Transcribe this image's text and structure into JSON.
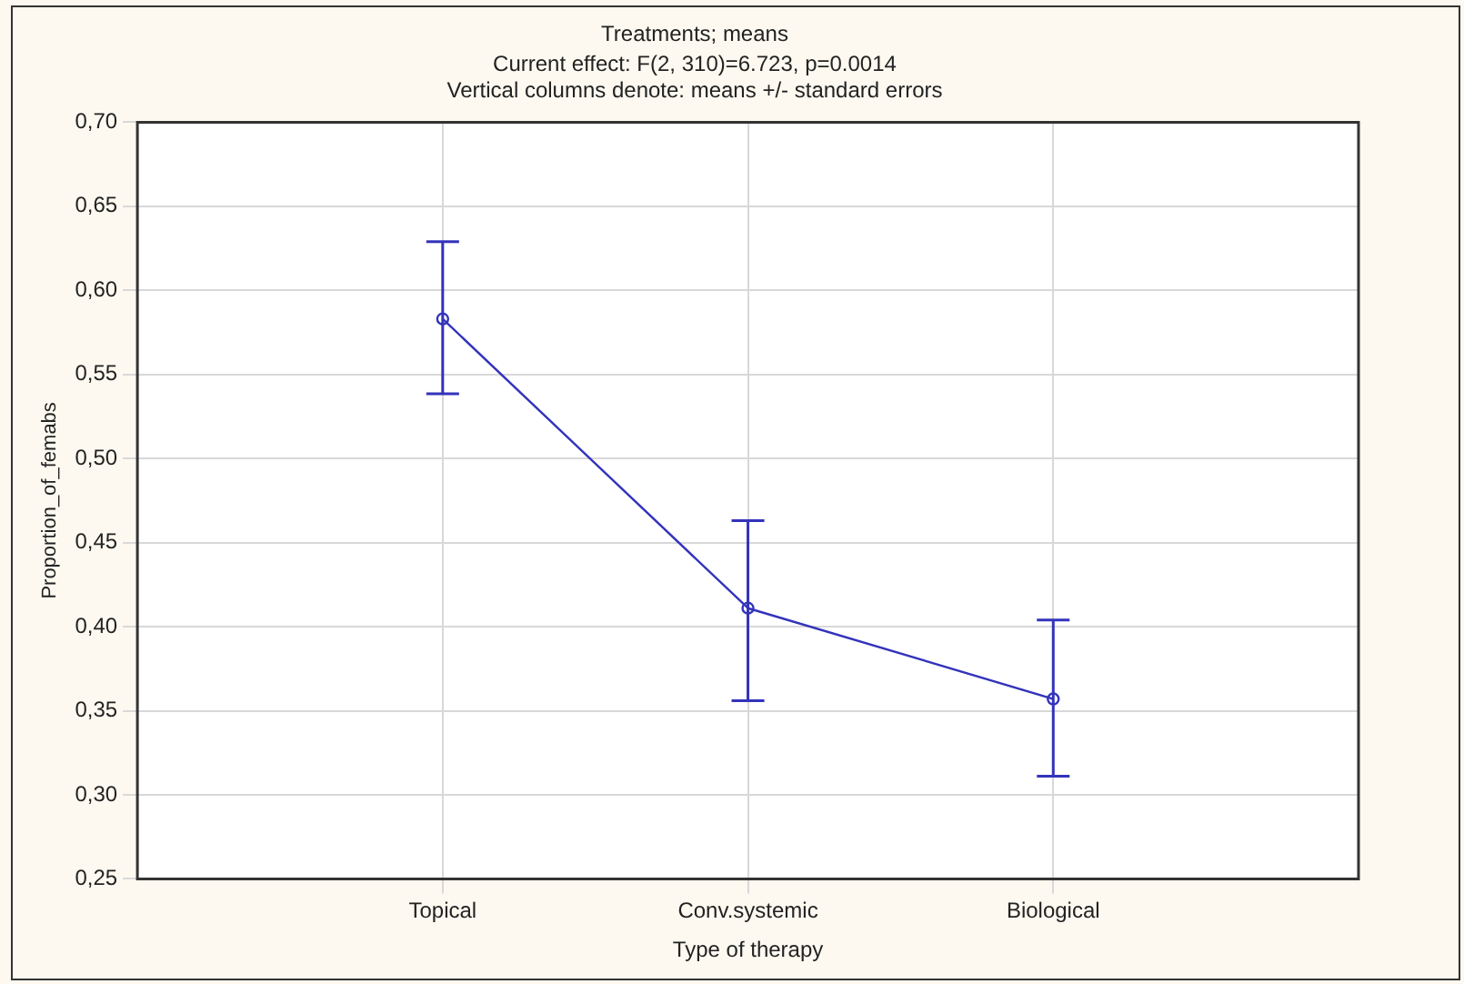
{
  "chart_data": {
    "type": "line",
    "title": "Treatments; means",
    "subtitle": "Current effect: F(2, 310)=6.723, p=0.0014\nVertical columns denote: means +/- standard errors",
    "xlabel": "Type of therapy",
    "ylabel": "Proportion_of_femabs",
    "categories": [
      "Topical",
      "Conv.systemic",
      "Biological"
    ],
    "series": [
      {
        "color": "#3333bb",
        "values": [
          0.583,
          0.411,
          0.357
        ],
        "errors": [
          [
            0.5385,
            0.629
          ],
          [
            0.356,
            0.463
          ],
          [
            0.311,
            0.404
          ]
        ]
      }
    ],
    "ylim": [
      0.25,
      0.7
    ],
    "yticks": [
      {
        "value": 0.25,
        "label": "0,25"
      },
      {
        "value": 0.3,
        "label": "0,30"
      },
      {
        "value": 0.35,
        "label": "0,35"
      },
      {
        "value": 0.4,
        "label": "0,40"
      },
      {
        "value": 0.45,
        "label": "0,45"
      },
      {
        "value": 0.5,
        "label": "0,50"
      },
      {
        "value": 0.55,
        "label": "0,55"
      },
      {
        "value": 0.6,
        "label": "0,60"
      },
      {
        "value": 0.65,
        "label": "0,65"
      },
      {
        "value": 0.7,
        "label": "0,70"
      }
    ],
    "grid": true,
    "legend": false,
    "marker": "circle",
    "line_style": "solid"
  }
}
